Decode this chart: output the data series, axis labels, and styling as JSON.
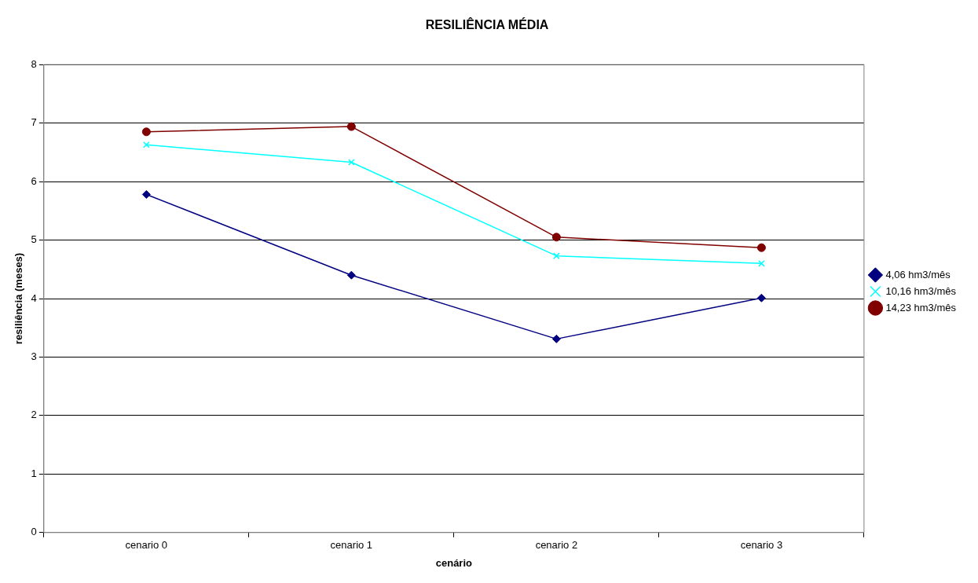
{
  "chart_data": {
    "type": "line",
    "title": "RESILIÊNCIA MÉDIA",
    "xlabel": "cenário",
    "ylabel": "resiliência (meses)",
    "categories": [
      "cenario 0",
      "cenario 1",
      "cenario 2",
      "cenario 3"
    ],
    "series": [
      {
        "name": "4,06 hm3/mês",
        "color": "#000080",
        "marker": "diamond",
        "values": [
          5.78,
          4.4,
          3.31,
          4.01
        ]
      },
      {
        "name": "10,16 hm3/mês",
        "color": "#00ffff",
        "marker": "cross",
        "values": [
          6.63,
          6.33,
          4.73,
          4.6
        ]
      },
      {
        "name": "14,23 hm3/mês",
        "color": "#800000",
        "marker": "circle",
        "values": [
          6.85,
          6.94,
          5.05,
          4.87
        ]
      }
    ],
    "ylim": [
      0,
      8
    ],
    "yticks": [
      0,
      1,
      2,
      3,
      4,
      5,
      6,
      7,
      8
    ],
    "grid": "y",
    "legend": "right",
    "line_style": "solid"
  }
}
